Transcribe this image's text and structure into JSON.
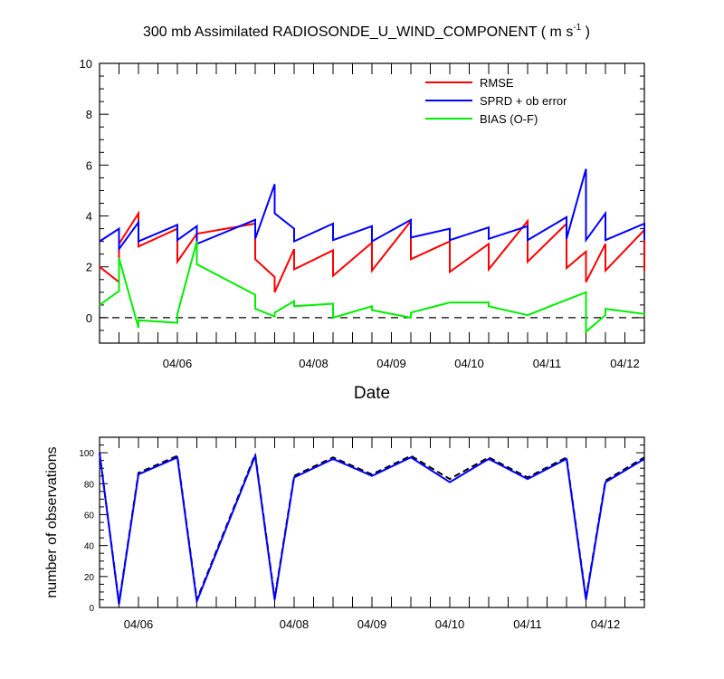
{
  "chart_data": [
    {
      "type": "line",
      "title": "300 mb Assimilated RADIOSONDE_U_WIND_COMPONENT ( m s",
      "title_sup": "-1",
      "title_end": " )",
      "xlabel": "Date",
      "ylabel": "",
      "ylim": [
        -1,
        10
      ],
      "yticks": [
        0,
        2,
        4,
        6,
        8,
        10
      ],
      "x_tick_labels": [
        "04/06",
        "04/08",
        "04/09",
        "04/10",
        "04/11",
        "04/12"
      ],
      "x_tick_pos": [
        1.0,
        2.75,
        3.75,
        4.75,
        5.75,
        6.75
      ],
      "xlim": [
        0.0,
        7.0
      ],
      "zero_line": true,
      "legend_position": "top-right",
      "series": [
        {
          "name": "RMSE",
          "color": "#ff0000",
          "segments": [
            [
              [
                0.0,
                2.0
              ],
              [
                0.25,
                1.4
              ],
              [
                0.25,
                2.9
              ],
              [
                0.5,
                4.1
              ],
              [
                0.5,
                2.8
              ],
              [
                1.0,
                3.5
              ],
              [
                1.0,
                2.2
              ],
              [
                1.25,
                3.3
              ],
              [
                1.25,
                3.3
              ],
              [
                2.0,
                3.7
              ],
              [
                2.0,
                2.3
              ],
              [
                2.25,
                1.6
              ],
              [
                2.25,
                1.0
              ],
              [
                2.5,
                2.7
              ],
              [
                2.5,
                1.9
              ],
              [
                3.0,
                2.65
              ],
              [
                3.0,
                1.65
              ],
              [
                3.5,
                2.95
              ],
              [
                3.5,
                1.85
              ],
              [
                4.0,
                3.8
              ],
              [
                4.0,
                2.3
              ],
              [
                4.5,
                3.0
              ],
              [
                4.5,
                1.8
              ],
              [
                5.0,
                2.9
              ],
              [
                5.0,
                1.9
              ],
              [
                5.5,
                3.8
              ],
              [
                5.5,
                2.2
              ],
              [
                6.0,
                3.7
              ],
              [
                6.0,
                1.95
              ],
              [
                6.25,
                2.6
              ],
              [
                6.25,
                1.4
              ],
              [
                6.5,
                2.9
              ],
              [
                6.5,
                1.85
              ],
              [
                7.0,
                3.45
              ],
              [
                7.0,
                1.85
              ]
            ]
          ]
        },
        {
          "name": "SPRD + ob error",
          "color": "#0000ff",
          "segments": [
            [
              [
                0.0,
                3.0
              ],
              [
                0.25,
                3.5
              ],
              [
                0.25,
                2.7
              ],
              [
                0.5,
                3.75
              ],
              [
                0.5,
                3.0
              ],
              [
                1.0,
                3.65
              ],
              [
                1.0,
                3.05
              ],
              [
                1.25,
                3.6
              ],
              [
                1.25,
                2.9
              ],
              [
                2.0,
                3.85
              ],
              [
                2.0,
                3.1
              ],
              [
                2.25,
                5.25
              ],
              [
                2.25,
                4.1
              ],
              [
                2.5,
                3.5
              ],
              [
                2.5,
                3.0
              ],
              [
                3.0,
                3.7
              ],
              [
                3.0,
                3.05
              ],
              [
                3.5,
                3.6
              ],
              [
                3.5,
                3.0
              ],
              [
                4.0,
                3.85
              ],
              [
                4.0,
                3.15
              ],
              [
                4.5,
                3.5
              ],
              [
                4.5,
                3.05
              ],
              [
                5.0,
                3.55
              ],
              [
                5.0,
                3.1
              ],
              [
                5.5,
                3.6
              ],
              [
                5.5,
                3.05
              ],
              [
                6.0,
                3.95
              ],
              [
                6.0,
                3.1
              ],
              [
                6.25,
                5.85
              ],
              [
                6.25,
                3.05
              ],
              [
                6.5,
                4.1
              ],
              [
                6.5,
                3.05
              ],
              [
                7.0,
                3.7
              ],
              [
                7.0,
                3.05
              ]
            ]
          ]
        },
        {
          "name": "BIAS (O-F)",
          "color": "#00ee00",
          "segments": [
            [
              [
                0.0,
                0.5
              ],
              [
                0.25,
                1.05
              ],
              [
                0.25,
                2.35
              ],
              [
                0.5,
                -0.4
              ],
              [
                0.5,
                -0.1
              ],
              [
                1.0,
                -0.2
              ],
              [
                1.0,
                0.15
              ],
              [
                1.25,
                3.0
              ],
              [
                1.25,
                2.1
              ],
              [
                2.0,
                0.9
              ],
              [
                2.0,
                0.35
              ],
              [
                2.25,
                0.05
              ],
              [
                2.25,
                0.2
              ],
              [
                2.5,
                0.65
              ],
              [
                2.5,
                0.45
              ],
              [
                3.0,
                0.55
              ],
              [
                3.0,
                0.0
              ],
              [
                3.5,
                0.45
              ],
              [
                3.5,
                0.3
              ],
              [
                4.0,
                0.0
              ],
              [
                4.0,
                0.2
              ],
              [
                4.5,
                0.6
              ],
              [
                4.5,
                0.6
              ],
              [
                5.0,
                0.6
              ],
              [
                5.0,
                0.45
              ],
              [
                5.5,
                0.1
              ],
              [
                5.5,
                0.1
              ],
              [
                6.0,
                0.7
              ],
              [
                6.0,
                0.7
              ],
              [
                6.25,
                1.0
              ],
              [
                6.25,
                -0.55
              ],
              [
                6.5,
                0.1
              ],
              [
                6.5,
                0.35
              ],
              [
                7.0,
                0.15
              ],
              [
                7.0,
                0.1
              ]
            ]
          ]
        }
      ]
    },
    {
      "type": "line",
      "title": "",
      "xlabel": "",
      "ylabel": "number of observations",
      "ylim": [
        0,
        110
      ],
      "yticks": [
        0,
        20,
        40,
        60,
        80,
        100
      ],
      "x_tick_labels": [
        "04/06",
        "04/08",
        "04/09",
        "04/10",
        "04/11",
        "04/12"
      ],
      "x_tick_pos": [
        0.5,
        2.5,
        3.5,
        4.5,
        5.5,
        6.5
      ],
      "xlim": [
        0.0,
        7.0
      ],
      "series": [
        {
          "name": "",
          "color": "#000000",
          "dash": true,
          "x": [
            0.0,
            0.25,
            0.5,
            1.0,
            1.25,
            2.0,
            2.25,
            2.5,
            3.0,
            3.5,
            4.0,
            4.5,
            5.0,
            5.5,
            6.0,
            6.25,
            6.5,
            7.0
          ],
          "values": [
            100,
            3,
            87,
            98,
            5,
            99,
            6,
            85,
            97,
            86,
            98,
            83,
            97,
            84,
            97,
            6,
            82,
            97
          ]
        },
        {
          "name": "",
          "color": "#0000ff",
          "dash": false,
          "x": [
            0.0,
            0.25,
            0.5,
            1.0,
            1.25,
            2.0,
            2.25,
            2.5,
            3.0,
            3.5,
            4.0,
            4.5,
            5.0,
            5.5,
            6.0,
            6.25,
            6.5,
            7.0
          ],
          "values": [
            100,
            2,
            86,
            97,
            4,
            98,
            5,
            84,
            96,
            85,
            97,
            81,
            96,
            83,
            96,
            5,
            81,
            96
          ]
        }
      ]
    }
  ]
}
